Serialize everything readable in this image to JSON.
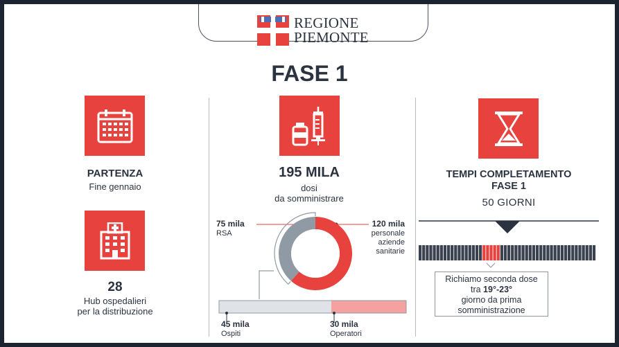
{
  "header": {
    "logo_line1": "REGIONE",
    "logo_line2": "PIEMONTE",
    "logo_icon": "piemonte-coat-of-arms-icon"
  },
  "title": "FASE 1",
  "colors": {
    "accent": "#e8423f",
    "text": "#2b3340",
    "gray": "#8f9aa5",
    "light_red": "#f4a1a0",
    "light_gray": "#dfe3e8"
  },
  "left": {
    "calendar_icon": "calendar-icon",
    "start_title": "PARTENZA",
    "start_value": "Fine gennaio",
    "hospital_icon": "hospital-icon",
    "hub_count": "28",
    "hub_line1": "Hub ospedalieri",
    "hub_line2": "per la distribuzione"
  },
  "center": {
    "vaccine_icon": "vaccine-syringe-icon",
    "doses_title": "195 MILA",
    "doses_line1": "dosi",
    "doses_line2": "da somministrare",
    "rsa_value": "75 mila",
    "rsa_label": "RSA",
    "health_value": "120 mila",
    "health_line1": "personale",
    "health_line2": "aziende",
    "health_line3": "sanitarie",
    "guests_value": "45 mila",
    "guests_label": "Ospiti",
    "operators_value": "30 mila",
    "operators_label": "Operatori"
  },
  "right": {
    "hourglass_icon": "hourglass-icon",
    "time_line1": "TEMPI COMPLETAMENTO",
    "time_line2": "FASE 1",
    "days": "50 GIORNI",
    "callout_line1": "Richiamo seconda dose",
    "callout_line2": "tra 19°-23°",
    "callout_line3": "giorno da prima",
    "callout_line4": "somministrazione"
  },
  "chart_data": {
    "type": "pie",
    "donut": {
      "slices": [
        {
          "name": "RSA",
          "value": 75
        },
        {
          "name": "personale aziende sanitarie",
          "value": 120
        }
      ]
    },
    "rsa_split": [
      {
        "name": "Ospiti",
        "value": 45
      },
      {
        "name": "Operatori",
        "value": 30
      }
    ],
    "timeline": {
      "total_days": 50,
      "recall_from_day": 19,
      "recall_to_day": 23
    }
  }
}
